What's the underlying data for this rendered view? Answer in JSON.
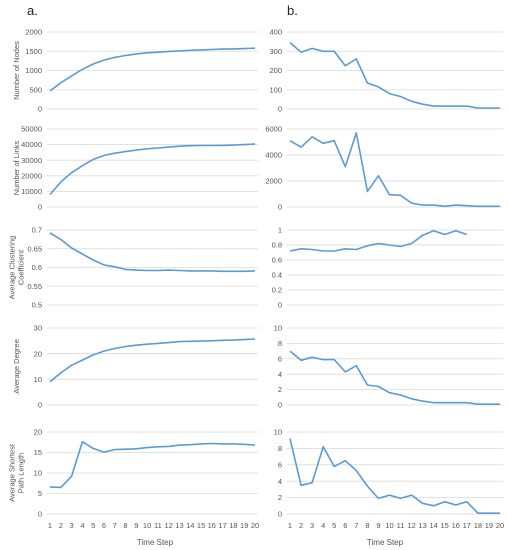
{
  "panel_labels": [
    "a.",
    "b."
  ],
  "x_title": "Time Step",
  "line_color": "#5B9BD5",
  "chart_data": [
    {
      "type": "line",
      "panel": "a",
      "ylabel": "Number of Nodes",
      "ylim": [
        0,
        2000
      ],
      "yticks": [
        0,
        500,
        1000,
        1500,
        2000
      ],
      "x": [
        1,
        2,
        3,
        4,
        5,
        6,
        7,
        8,
        9,
        10,
        11,
        12,
        13,
        14,
        15,
        16,
        17,
        18,
        19,
        20
      ],
      "values": [
        470,
        680,
        860,
        1030,
        1170,
        1270,
        1340,
        1390,
        1430,
        1460,
        1475,
        1495,
        1510,
        1525,
        1535,
        1545,
        1555,
        1560,
        1570,
        1580
      ]
    },
    {
      "type": "line",
      "panel": "b",
      "ylabel": "",
      "ylim": [
        0,
        400
      ],
      "yticks": [
        0,
        100,
        200,
        300,
        400
      ],
      "x": [
        1,
        2,
        3,
        4,
        5,
        6,
        7,
        8,
        9,
        10,
        11,
        12,
        13,
        14,
        15,
        16,
        17,
        18,
        19,
        20
      ],
      "values": [
        345,
        295,
        315,
        300,
        300,
        225,
        260,
        135,
        115,
        80,
        65,
        40,
        25,
        15,
        15,
        15,
        15,
        5,
        5,
        5
      ]
    },
    {
      "type": "line",
      "panel": "a",
      "ylabel": "Number of Links",
      "ylim": [
        0,
        50000
      ],
      "yticks": [
        0,
        10000,
        20000,
        30000,
        40000,
        50000
      ],
      "x": [
        1,
        2,
        3,
        4,
        5,
        6,
        7,
        8,
        9,
        10,
        11,
        12,
        13,
        14,
        15,
        16,
        17,
        18,
        19,
        20
      ],
      "values": [
        8000,
        16000,
        22000,
        26500,
        30500,
        33000,
        34500,
        35500,
        36500,
        37300,
        37800,
        38400,
        39000,
        39300,
        39400,
        39400,
        39500,
        39700,
        40000,
        40300
      ]
    },
    {
      "type": "line",
      "panel": "b",
      "ylabel": "",
      "ylim": [
        0,
        6000
      ],
      "yticks": [
        0,
        2000,
        4000,
        6000
      ],
      "x": [
        1,
        2,
        3,
        4,
        5,
        6,
        7,
        8,
        9,
        10,
        11,
        12,
        13,
        14,
        15,
        16,
        17,
        18,
        19,
        20
      ],
      "values": [
        5100,
        4600,
        5400,
        4900,
        5100,
        3100,
        5700,
        1200,
        2400,
        950,
        900,
        300,
        150,
        150,
        50,
        150,
        100,
        50,
        50,
        50
      ]
    },
    {
      "type": "line",
      "panel": "a",
      "ylabel": "Average Clustering Coefficient",
      "ylim": [
        0.5,
        0.7
      ],
      "yticks": [
        0.5,
        0.55,
        0.6,
        0.65,
        0.7
      ],
      "yticklabels": [
        "0.5",
        "0.55",
        "0.6",
        "0.65",
        "0.7"
      ],
      "x": [
        1,
        2,
        3,
        4,
        5,
        6,
        7,
        8,
        9,
        10,
        11,
        12,
        13,
        14,
        15,
        16,
        17,
        18,
        19,
        20
      ],
      "values": [
        0.692,
        0.675,
        0.652,
        0.636,
        0.62,
        0.607,
        0.602,
        0.595,
        0.593,
        0.592,
        0.592,
        0.593,
        0.592,
        0.591,
        0.591,
        0.591,
        0.59,
        0.59,
        0.59,
        0.591
      ]
    },
    {
      "type": "line",
      "panel": "b",
      "ylabel": "",
      "ylim": [
        0,
        1
      ],
      "yticks": [
        0,
        0.2,
        0.4,
        0.6,
        0.8,
        1
      ],
      "yticklabels": [
        "0",
        "0.2",
        "0.4",
        "0.6",
        "0.8",
        "1"
      ],
      "x": [
        1,
        2,
        3,
        4,
        5,
        6,
        7,
        8,
        9,
        10,
        11,
        12,
        13,
        14,
        15,
        16,
        17
      ],
      "values": [
        0.72,
        0.75,
        0.74,
        0.72,
        0.72,
        0.75,
        0.74,
        0.79,
        0.82,
        0.8,
        0.78,
        0.82,
        0.93,
        0.99,
        0.94,
        0.99,
        0.94
      ]
    },
    {
      "type": "line",
      "panel": "a",
      "ylabel": "Average Degree",
      "ylim": [
        0,
        30
      ],
      "yticks": [
        0,
        10,
        20,
        30
      ],
      "x": [
        1,
        2,
        3,
        4,
        5,
        6,
        7,
        8,
        9,
        10,
        11,
        12,
        13,
        14,
        15,
        16,
        17,
        18,
        19,
        20
      ],
      "values": [
        9,
        12.5,
        15.5,
        17.5,
        19.5,
        21,
        22,
        22.8,
        23.3,
        23.7,
        24,
        24.3,
        24.7,
        24.8,
        24.9,
        25,
        25.2,
        25.3,
        25.5,
        25.7
      ]
    },
    {
      "type": "line",
      "panel": "b",
      "ylabel": "",
      "ylim": [
        0,
        10
      ],
      "yticks": [
        0,
        2,
        4,
        6,
        8,
        10
      ],
      "x": [
        1,
        2,
        3,
        4,
        5,
        6,
        7,
        8,
        9,
        10,
        11,
        12,
        13,
        14,
        15,
        16,
        17,
        18,
        19,
        20
      ],
      "values": [
        7,
        5.8,
        6.2,
        5.9,
        5.9,
        4.3,
        5.1,
        2.6,
        2.4,
        1.6,
        1.3,
        0.8,
        0.5,
        0.3,
        0.3,
        0.3,
        0.3,
        0.1,
        0.1,
        0.1
      ]
    },
    {
      "type": "line",
      "panel": "a",
      "ylabel": "Average Shortest Path Length",
      "ylim": [
        0,
        20
      ],
      "yticks": [
        0,
        5,
        10,
        15,
        20
      ],
      "x": [
        1,
        2,
        3,
        4,
        5,
        6,
        7,
        8,
        9,
        10,
        11,
        12,
        13,
        14,
        15,
        16,
        17,
        18,
        19,
        20
      ],
      "values": [
        6.6,
        6.5,
        9.2,
        17.6,
        16,
        15.1,
        15.7,
        15.8,
        15.9,
        16.2,
        16.4,
        16.5,
        16.8,
        16.9,
        17.1,
        17.2,
        17.1,
        17.1,
        17,
        16.8
      ]
    },
    {
      "type": "line",
      "panel": "b",
      "ylabel": "",
      "ylim": [
        0,
        10
      ],
      "yticks": [
        0,
        2,
        4,
        6,
        8,
        10
      ],
      "x": [
        1,
        2,
        3,
        4,
        5,
        6,
        7,
        8,
        9,
        10,
        11,
        12,
        13,
        14,
        15,
        16,
        17,
        18,
        19,
        20
      ],
      "values": [
        9.2,
        3.5,
        3.8,
        8.2,
        5.8,
        6.5,
        5.3,
        3.4,
        1.9,
        2.3,
        1.9,
        2.3,
        1.3,
        1,
        1.5,
        1.1,
        1.5,
        0.1,
        0.1,
        0.1
      ]
    }
  ],
  "x_ticks": [
    "1",
    "2",
    "3",
    "4",
    "5",
    "6",
    "7",
    "8",
    "9",
    "10",
    "11",
    "12",
    "13",
    "14",
    "15",
    "16",
    "17",
    "18",
    "19",
    "20"
  ]
}
